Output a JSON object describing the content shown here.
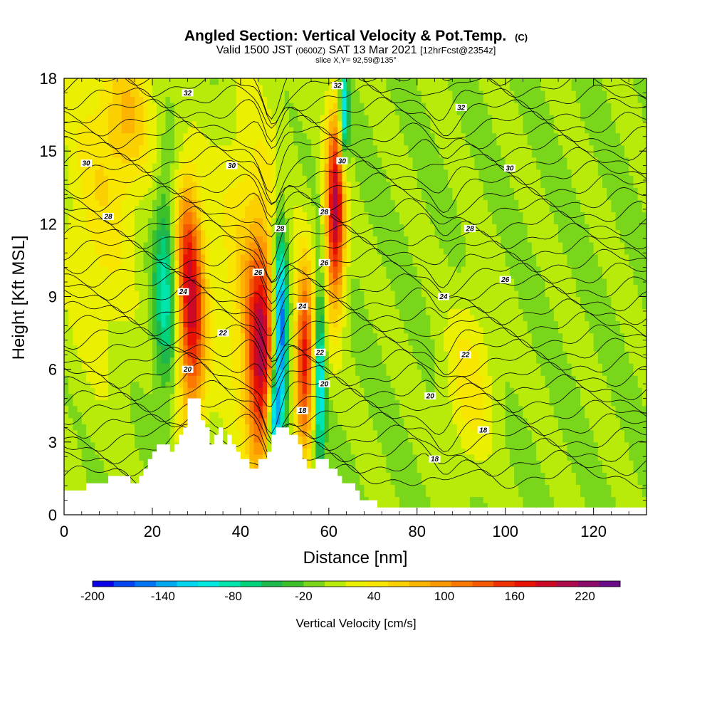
{
  "chart_data": {
    "type": "heatmap",
    "title": "Angled Section: Vertical Velocity & Pot.Temp.",
    "title_units": "(C)",
    "subtitle_parts": [
      "Valid 1500 JST ",
      "(0600Z)",
      " SAT 13 Mar 2021 ",
      "[12hrFcst@2354z]"
    ],
    "slice_info": "slice X,Y= 92,59@135°",
    "xlabel": "Distance [nm]",
    "ylabel": "Height [Kft MSL]",
    "xlim": [
      0,
      132
    ],
    "ylim": [
      0,
      18
    ],
    "x_ticks": [
      0,
      20,
      40,
      60,
      80,
      100,
      120
    ],
    "y_ticks": [
      0,
      3,
      6,
      9,
      12,
      15,
      18
    ],
    "colorbar": {
      "label": "Vertical Velocity [cm/s]",
      "tick_values": [
        -200,
        -140,
        -80,
        -20,
        40,
        100,
        160,
        220
      ],
      "range": [
        -200,
        250
      ],
      "step": 20,
      "colors": [
        "#0a00e6",
        "#0045f0",
        "#0074f2",
        "#00a8f0",
        "#00d4ee",
        "#00e8e0",
        "#00e4ae",
        "#00d27c",
        "#1eb74c",
        "#3cc02a",
        "#7ad61a",
        "#b8ea0a",
        "#eaf000",
        "#f8e600",
        "#fbd000",
        "#fcb400",
        "#fc9800",
        "#fa7800",
        "#f45800",
        "#ee3000",
        "#e81000",
        "#cc0824",
        "#ac0a4a",
        "#8c0a6a",
        "#6a0a88"
      ]
    },
    "terrain_kft": [
      [
        0,
        1.0
      ],
      [
        5,
        1.0
      ],
      [
        5,
        1.3
      ],
      [
        10,
        1.3
      ],
      [
        10,
        1.6
      ],
      [
        15,
        1.6
      ],
      [
        15,
        1.3
      ],
      [
        17,
        1.3
      ],
      [
        17,
        1.6
      ],
      [
        18,
        1.6
      ],
      [
        18,
        1.9
      ],
      [
        19,
        1.9
      ],
      [
        19,
        2.3
      ],
      [
        20,
        2.3
      ],
      [
        20,
        2.6
      ],
      [
        21,
        2.6
      ],
      [
        21,
        2.9
      ],
      [
        24,
        2.9
      ],
      [
        24,
        2.6
      ],
      [
        25,
        2.6
      ],
      [
        25,
        2.9
      ],
      [
        26,
        2.9
      ],
      [
        26,
        3.3
      ],
      [
        27,
        3.3
      ],
      [
        27,
        3.6
      ],
      [
        28,
        3.6
      ],
      [
        28,
        4.8
      ],
      [
        31,
        4.8
      ],
      [
        31,
        3.9
      ],
      [
        32,
        3.9
      ],
      [
        32,
        3.6
      ],
      [
        33,
        3.6
      ],
      [
        33,
        2.9
      ],
      [
        34,
        2.9
      ],
      [
        34,
        3.3
      ],
      [
        35,
        3.3
      ],
      [
        35,
        3.6
      ],
      [
        36,
        3.6
      ],
      [
        36,
        2.9
      ],
      [
        37,
        2.9
      ],
      [
        37,
        3.3
      ],
      [
        38,
        3.3
      ],
      [
        38,
        2.9
      ],
      [
        39,
        2.9
      ],
      [
        39,
        2.6
      ],
      [
        40,
        2.6
      ],
      [
        40,
        2.3
      ],
      [
        42,
        2.3
      ],
      [
        42,
        1.9
      ],
      [
        44,
        1.9
      ],
      [
        44,
        2.3
      ],
      [
        46,
        2.3
      ],
      [
        46,
        2.6
      ],
      [
        47,
        2.6
      ],
      [
        47,
        3.3
      ],
      [
        48,
        3.3
      ],
      [
        48,
        3.6
      ],
      [
        51,
        3.6
      ],
      [
        51,
        3.3
      ],
      [
        53,
        3.3
      ],
      [
        53,
        2.9
      ],
      [
        54,
        2.9
      ],
      [
        54,
        2.3
      ],
      [
        55,
        2.3
      ],
      [
        55,
        1.9
      ],
      [
        57,
        1.9
      ],
      [
        57,
        2.3
      ],
      [
        60,
        2.3
      ],
      [
        60,
        1.9
      ],
      [
        62,
        1.9
      ],
      [
        62,
        1.6
      ],
      [
        63,
        1.6
      ],
      [
        63,
        1.3
      ],
      [
        66,
        1.3
      ],
      [
        66,
        1.0
      ],
      [
        67,
        1.0
      ],
      [
        67,
        0.6
      ],
      [
        71,
        0.6
      ],
      [
        71,
        0.3
      ],
      [
        132,
        0.3
      ]
    ],
    "w_features": [
      {
        "x": 29,
        "h": 7.8,
        "sx": 2.2,
        "sh": 3.0,
        "amp": 180
      },
      {
        "x": 27.5,
        "h": 11.5,
        "sx": 2.2,
        "sh": 2.2,
        "amp": 90
      },
      {
        "x": 23,
        "h": 9.5,
        "sx": 1.8,
        "sh": 2.8,
        "amp": -100
      },
      {
        "x": 44.5,
        "h": 6.5,
        "sx": 2.2,
        "sh": 3.2,
        "amp": 190
      },
      {
        "x": 49,
        "h": 7.5,
        "sx": 1.2,
        "sh": 3.0,
        "amp": -220
      },
      {
        "x": 47.5,
        "h": 4.0,
        "sx": 1.0,
        "sh": 1.2,
        "amp": -140
      },
      {
        "x": 54.5,
        "h": 6.5,
        "sx": 1.4,
        "sh": 2.6,
        "amp": 190
      },
      {
        "x": 58,
        "h": 5.5,
        "sx": 0.8,
        "sh": 2.6,
        "amp": -130
      },
      {
        "x": 61.5,
        "h": 12.5,
        "sx": 1.5,
        "sh": 2.8,
        "amp": 230
      },
      {
        "x": 63.5,
        "h": 16.5,
        "sx": 0.7,
        "sh": 1.6,
        "amp": -140
      },
      {
        "x": 42,
        "h": 10,
        "sx": 6,
        "sh": 5,
        "amp": 60
      },
      {
        "x": 8,
        "h": 13,
        "sx": 6,
        "sh": 5,
        "amp": 50
      },
      {
        "x": 15,
        "h": 16.5,
        "sx": 4,
        "sh": 2,
        "amp": 60
      },
      {
        "x": 92,
        "h": 5.5,
        "sx": 4,
        "sh": 2.5,
        "amp": 50
      }
    ],
    "pot_temp_labels": [
      {
        "text": "32",
        "x": 28,
        "h": 17.4
      },
      {
        "text": "32",
        "x": 62,
        "h": 17.7
      },
      {
        "text": "32",
        "x": 90,
        "h": 16.8
      },
      {
        "text": "30",
        "x": 5,
        "h": 14.5
      },
      {
        "text": "30",
        "x": 38,
        "h": 14.4
      },
      {
        "text": "30",
        "x": 63,
        "h": 14.6
      },
      {
        "text": "30",
        "x": 101,
        "h": 14.3
      },
      {
        "text": "28",
        "x": 10,
        "h": 12.3
      },
      {
        "text": "28",
        "x": 49,
        "h": 11.8
      },
      {
        "text": "28",
        "x": 59,
        "h": 12.5
      },
      {
        "text": "28",
        "x": 92,
        "h": 11.8
      },
      {
        "text": "26",
        "x": 44,
        "h": 10.0
      },
      {
        "text": "26",
        "x": 59,
        "h": 10.4
      },
      {
        "text": "26",
        "x": 100,
        "h": 9.7
      },
      {
        "text": "24",
        "x": 27,
        "h": 9.2
      },
      {
        "text": "24",
        "x": 54,
        "h": 8.6
      },
      {
        "text": "24",
        "x": 86,
        "h": 9.0
      },
      {
        "text": "22",
        "x": 36,
        "h": 7.5
      },
      {
        "text": "22",
        "x": 58,
        "h": 6.7
      },
      {
        "text": "22",
        "x": 91,
        "h": 6.6
      },
      {
        "text": "20",
        "x": 28,
        "h": 6.0
      },
      {
        "text": "20",
        "x": 59,
        "h": 5.4
      },
      {
        "text": "20",
        "x": 83,
        "h": 4.9
      },
      {
        "text": "18",
        "x": 54,
        "h": 4.3
      },
      {
        "text": "18",
        "x": 95,
        "h": 3.5
      },
      {
        "text": "18",
        "x": 84,
        "h": 2.3
      }
    ]
  }
}
